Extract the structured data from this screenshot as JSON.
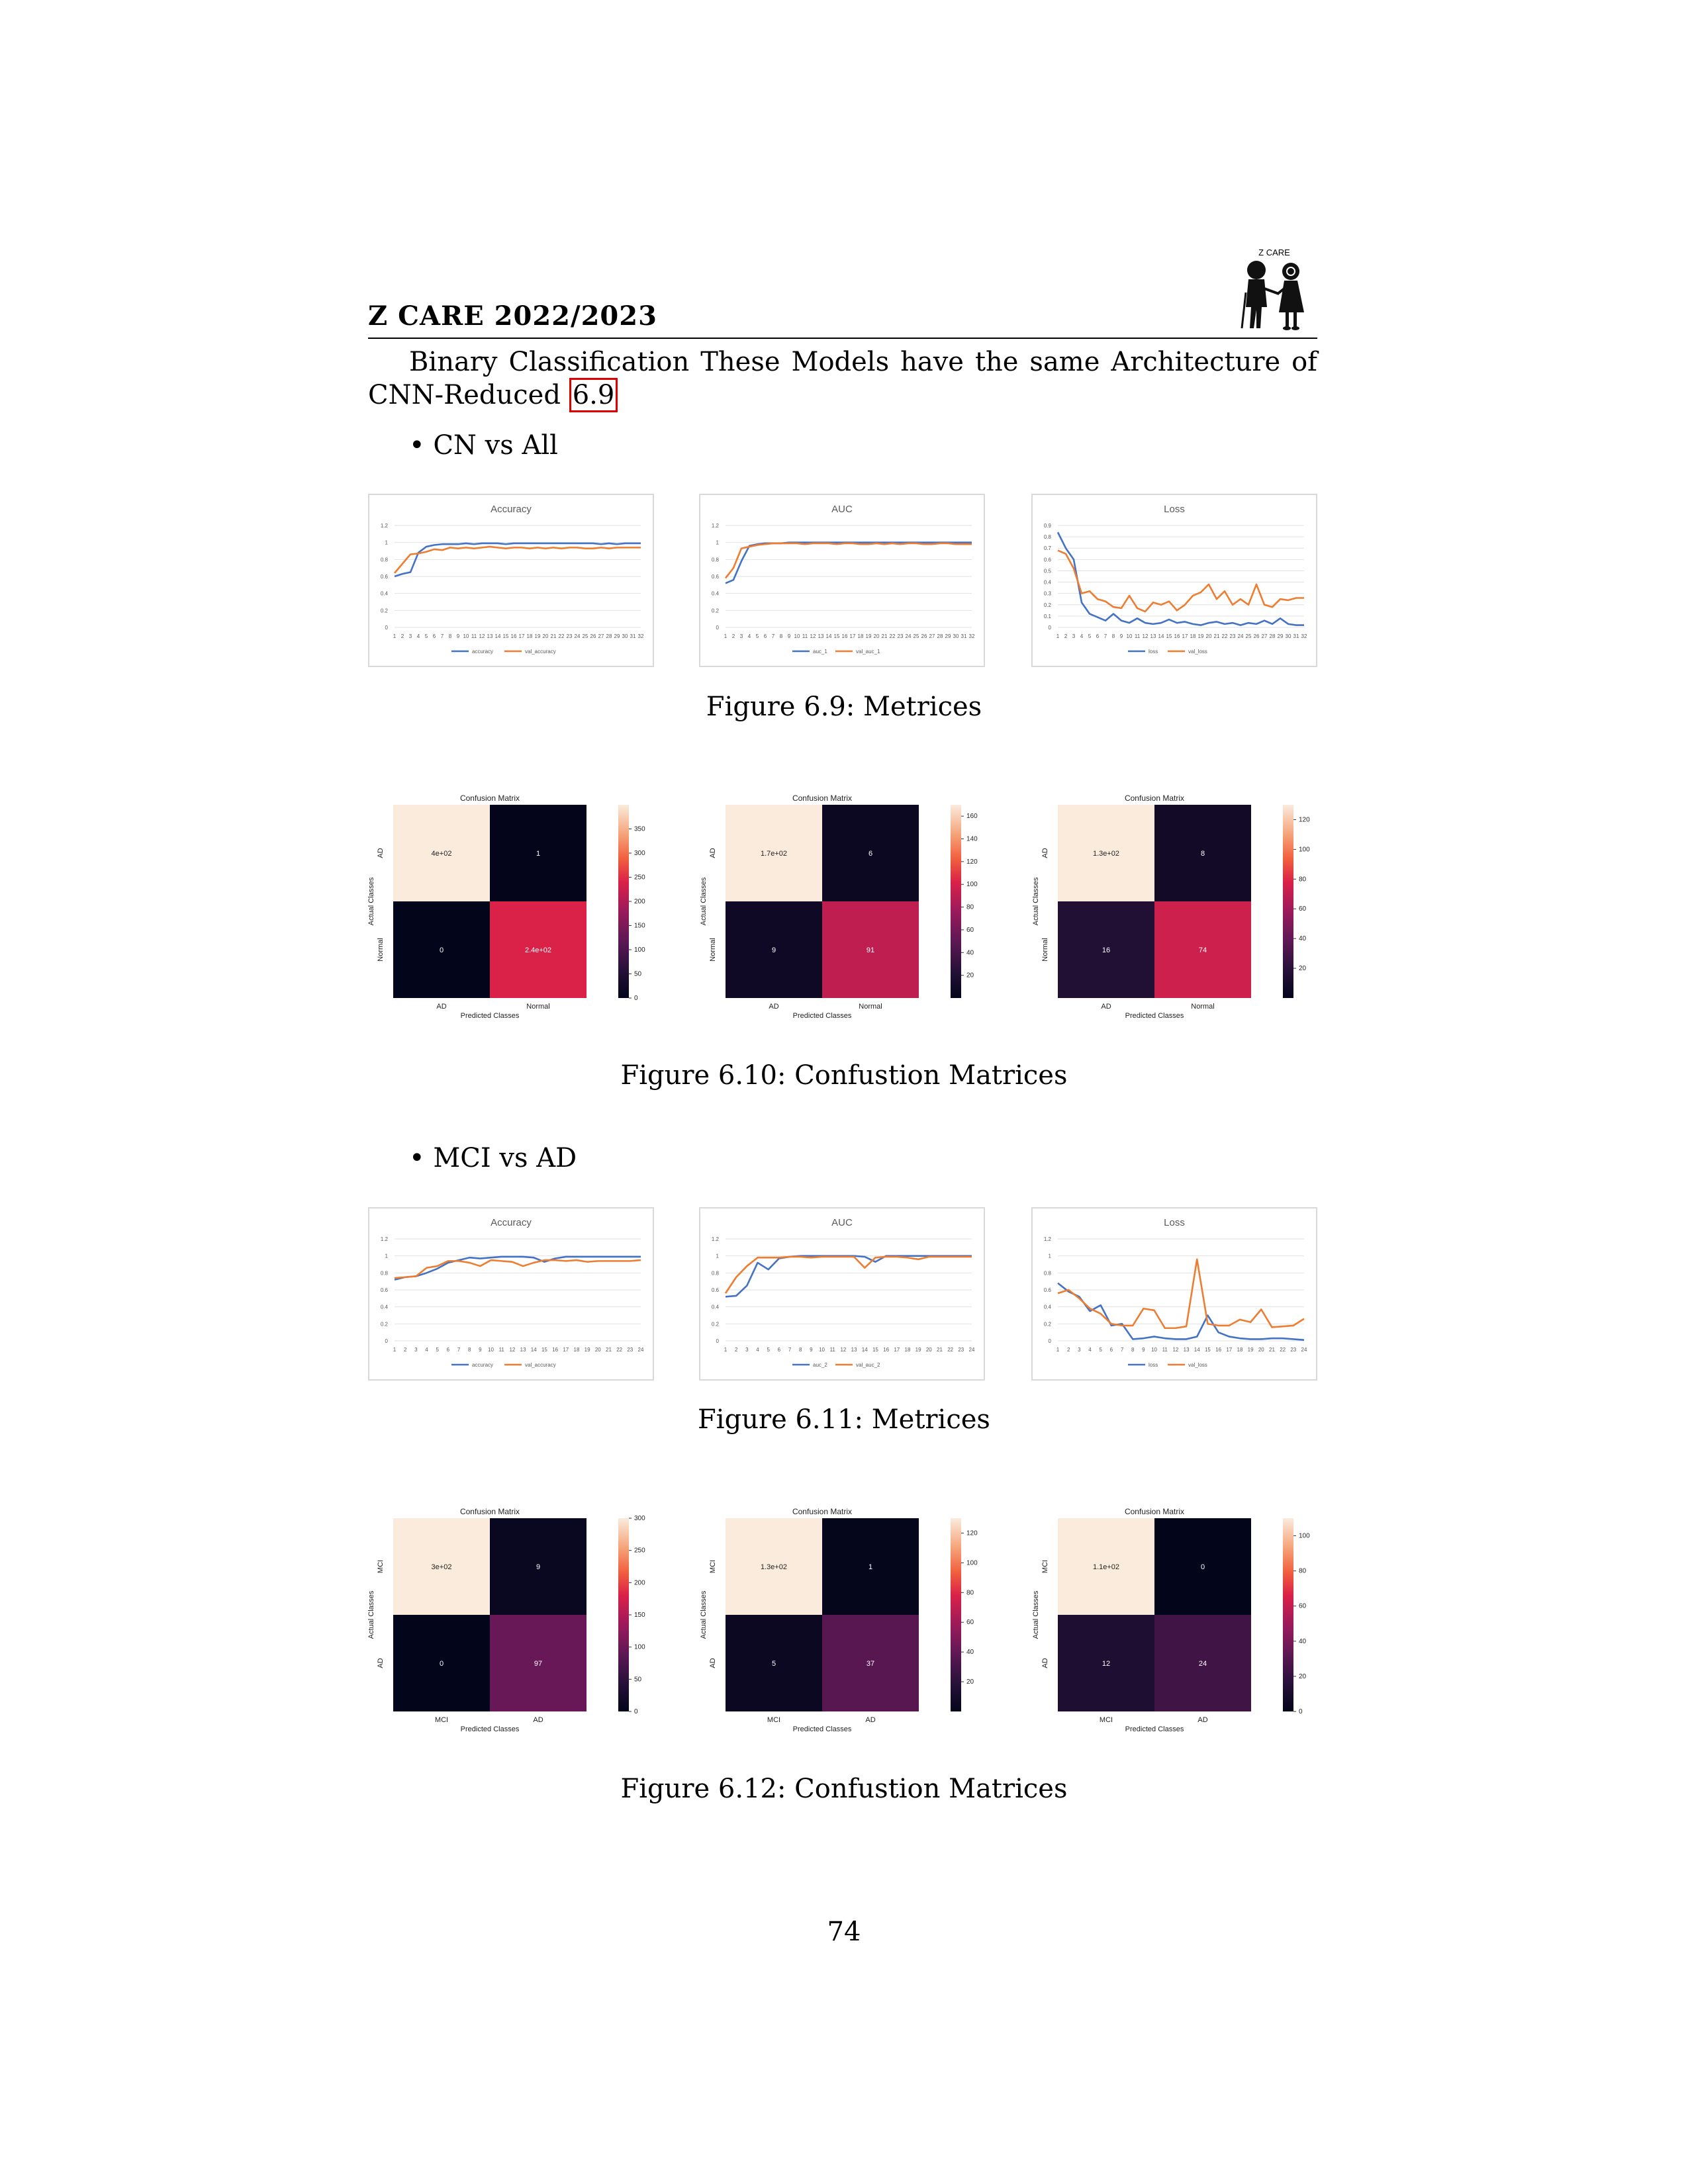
{
  "header": {
    "title": "Z CARE 2022/2023",
    "logo_text": "Z CARE"
  },
  "intro": {
    "text": "Binary Classification These Models have the same Architecture of CNN-Reduced",
    "ref": "6.9"
  },
  "sections": [
    {
      "bullet": "CN vs All",
      "metrics_caption": "Figure 6.9: Metrices",
      "cm_caption": "Figure 6.10: Confustion Matrices"
    },
    {
      "bullet": "MCI vs AD",
      "metrics_caption": "Figure 6.11: Metrices",
      "cm_caption": "Figure 6.12: Confustion Matrices"
    }
  ],
  "page_number": "74",
  "colors": {
    "train": "#4472c4",
    "val": "#ed7d31",
    "grid": "#e2e2e2"
  },
  "chart_data": [
    {
      "type": "line",
      "title": "Accuracy",
      "x": [
        1,
        2,
        3,
        4,
        5,
        6,
        7,
        8,
        9,
        10,
        11,
        12,
        13,
        14,
        15,
        16,
        17,
        18,
        19,
        20,
        21,
        22,
        23,
        24,
        25,
        26,
        27,
        28,
        29,
        30,
        31,
        32
      ],
      "ylim": [
        0,
        1.2
      ],
      "yticks": [
        "0",
        "0.2",
        "0.4",
        "0.6",
        "0.8",
        "1",
        "1.2"
      ],
      "ytickvals": [
        0,
        0.2,
        0.4,
        0.6,
        0.8,
        1,
        1.2
      ],
      "series": [
        {
          "name": "accuracy",
          "values": [
            0.6,
            0.63,
            0.65,
            0.88,
            0.95,
            0.97,
            0.98,
            0.98,
            0.98,
            0.99,
            0.98,
            0.99,
            0.99,
            0.99,
            0.98,
            0.99,
            0.99,
            0.99,
            0.99,
            0.99,
            0.99,
            0.99,
            0.99,
            0.99,
            0.99,
            0.99,
            0.98,
            0.99,
            0.98,
            0.99,
            0.99,
            0.99
          ]
        },
        {
          "name": "val_accuracy",
          "values": [
            0.64,
            0.75,
            0.86,
            0.87,
            0.89,
            0.92,
            0.91,
            0.94,
            0.93,
            0.94,
            0.93,
            0.94,
            0.95,
            0.94,
            0.93,
            0.94,
            0.94,
            0.93,
            0.94,
            0.93,
            0.94,
            0.93,
            0.94,
            0.94,
            0.93,
            0.93,
            0.94,
            0.93,
            0.94,
            0.94,
            0.94,
            0.94
          ]
        }
      ]
    },
    {
      "type": "line",
      "title": "AUC",
      "x": [
        1,
        2,
        3,
        4,
        5,
        6,
        7,
        8,
        9,
        10,
        11,
        12,
        13,
        14,
        15,
        16,
        17,
        18,
        19,
        20,
        21,
        22,
        23,
        24,
        25,
        26,
        27,
        28,
        29,
        30,
        31,
        32
      ],
      "ylim": [
        0,
        1.2
      ],
      "yticks": [
        "0",
        "0.2",
        "0.4",
        "0.6",
        "0.8",
        "1",
        "1.2"
      ],
      "ytickvals": [
        0,
        0.2,
        0.4,
        0.6,
        0.8,
        1,
        1.2
      ],
      "series": [
        {
          "name": "auc_1",
          "values": [
            0.52,
            0.56,
            0.78,
            0.96,
            0.98,
            0.99,
            0.99,
            0.99,
            1,
            1,
            1,
            1,
            1,
            1,
            1,
            1,
            1,
            1,
            1,
            1,
            1,
            1,
            1,
            1,
            1,
            1,
            1,
            1,
            1,
            1,
            1,
            1
          ]
        },
        {
          "name": "val_auc_1",
          "values": [
            0.58,
            0.7,
            0.93,
            0.95,
            0.97,
            0.98,
            0.99,
            0.99,
            0.99,
            0.99,
            0.98,
            0.99,
            0.99,
            0.99,
            0.98,
            0.99,
            0.99,
            0.98,
            0.98,
            0.99,
            0.98,
            0.99,
            0.98,
            0.99,
            0.99,
            0.98,
            0.98,
            0.99,
            0.99,
            0.98,
            0.98,
            0.98
          ]
        }
      ]
    },
    {
      "type": "line",
      "title": "Loss",
      "x": [
        1,
        2,
        3,
        4,
        5,
        6,
        7,
        8,
        9,
        10,
        11,
        12,
        13,
        14,
        15,
        16,
        17,
        18,
        19,
        20,
        21,
        22,
        23,
        24,
        25,
        26,
        27,
        28,
        29,
        30,
        31,
        32
      ],
      "ylim": [
        0,
        0.9
      ],
      "yticks": [
        "0",
        "0.1",
        "0.2",
        "0.3",
        "0.4",
        "0.5",
        "0.6",
        "0.7",
        "0.8",
        "0.9"
      ],
      "ytickvals": [
        0,
        0.1,
        0.2,
        0.3,
        0.4,
        0.5,
        0.6,
        0.7,
        0.8,
        0.9
      ],
      "series": [
        {
          "name": "loss",
          "values": [
            0.84,
            0.7,
            0.6,
            0.22,
            0.12,
            0.09,
            0.06,
            0.12,
            0.06,
            0.04,
            0.08,
            0.04,
            0.03,
            0.04,
            0.07,
            0.04,
            0.05,
            0.03,
            0.02,
            0.04,
            0.05,
            0.03,
            0.04,
            0.02,
            0.04,
            0.03,
            0.06,
            0.03,
            0.08,
            0.03,
            0.02,
            0.02
          ]
        },
        {
          "name": "val_loss",
          "values": [
            0.68,
            0.65,
            0.52,
            0.3,
            0.32,
            0.25,
            0.23,
            0.18,
            0.17,
            0.28,
            0.17,
            0.14,
            0.22,
            0.2,
            0.23,
            0.15,
            0.2,
            0.28,
            0.31,
            0.38,
            0.25,
            0.32,
            0.2,
            0.25,
            0.2,
            0.38,
            0.2,
            0.18,
            0.25,
            0.24,
            0.26,
            0.26
          ]
        }
      ]
    },
    {
      "type": "line",
      "title": "Accuracy",
      "x": [
        1,
        2,
        3,
        4,
        5,
        6,
        7,
        8,
        9,
        10,
        11,
        12,
        13,
        14,
        15,
        16,
        17,
        18,
        19,
        20,
        21,
        22,
        23,
        24
      ],
      "ylim": [
        0,
        1.2
      ],
      "yticks": [
        "0",
        "0.2",
        "0.4",
        "0.6",
        "0.8",
        "1",
        "1.2"
      ],
      "ytickvals": [
        0,
        0.2,
        0.4,
        0.6,
        0.8,
        1,
        1.2
      ],
      "series": [
        {
          "name": "accuracy",
          "values": [
            0.72,
            0.75,
            0.76,
            0.8,
            0.85,
            0.92,
            0.95,
            0.98,
            0.97,
            0.98,
            0.99,
            0.99,
            0.99,
            0.98,
            0.93,
            0.97,
            0.99,
            0.99,
            0.99,
            0.99,
            0.99,
            0.99,
            0.99,
            0.99
          ]
        },
        {
          "name": "val_accuracy",
          "values": [
            0.74,
            0.75,
            0.76,
            0.86,
            0.88,
            0.94,
            0.94,
            0.92,
            0.88,
            0.95,
            0.94,
            0.93,
            0.88,
            0.92,
            0.95,
            0.95,
            0.94,
            0.95,
            0.93,
            0.94,
            0.94,
            0.94,
            0.94,
            0.95
          ]
        }
      ]
    },
    {
      "type": "line",
      "title": "AUC",
      "x": [
        1,
        2,
        3,
        4,
        5,
        6,
        7,
        8,
        9,
        10,
        11,
        12,
        13,
        14,
        15,
        16,
        17,
        18,
        19,
        20,
        21,
        22,
        23,
        24
      ],
      "ylim": [
        0,
        1.2
      ],
      "yticks": [
        "0",
        "0.2",
        "0.4",
        "0.6",
        "0.8",
        "1",
        "1.2"
      ],
      "ytickvals": [
        0,
        0.2,
        0.4,
        0.6,
        0.8,
        1,
        1.2
      ],
      "series": [
        {
          "name": "auc_2",
          "values": [
            0.52,
            0.53,
            0.65,
            0.92,
            0.84,
            0.97,
            0.99,
            1,
            1,
            1,
            1,
            1,
            1,
            0.99,
            0.93,
            1,
            1,
            1,
            1,
            1,
            1,
            1,
            1,
            1
          ]
        },
        {
          "name": "val_auc_2",
          "values": [
            0.56,
            0.75,
            0.88,
            0.98,
            0.98,
            0.98,
            0.99,
            0.99,
            0.98,
            0.99,
            0.99,
            0.99,
            0.99,
            0.86,
            0.98,
            0.99,
            0.99,
            0.98,
            0.96,
            0.99,
            0.99,
            0.99,
            0.99,
            0.99
          ]
        }
      ]
    },
    {
      "type": "line",
      "title": "Loss",
      "x": [
        1,
        2,
        3,
        4,
        5,
        6,
        7,
        8,
        9,
        10,
        11,
        12,
        13,
        14,
        15,
        16,
        17,
        18,
        19,
        20,
        21,
        22,
        23,
        24
      ],
      "ylim": [
        0,
        1.2
      ],
      "yticks": [
        "0",
        "0.2",
        "0.4",
        "0.6",
        "0.8",
        "1",
        "1.2"
      ],
      "ytickvals": [
        0,
        0.2,
        0.4,
        0.6,
        0.8,
        1,
        1.2
      ],
      "series": [
        {
          "name": "loss",
          "values": [
            0.68,
            0.58,
            0.52,
            0.35,
            0.42,
            0.18,
            0.2,
            0.02,
            0.03,
            0.05,
            0.03,
            0.02,
            0.02,
            0.05,
            0.3,
            0.1,
            0.05,
            0.03,
            0.02,
            0.02,
            0.03,
            0.03,
            0.02,
            0.01
          ]
        },
        {
          "name": "val_loss",
          "values": [
            0.56,
            0.6,
            0.5,
            0.38,
            0.32,
            0.2,
            0.18,
            0.18,
            0.38,
            0.36,
            0.15,
            0.15,
            0.17,
            0.96,
            0.2,
            0.18,
            0.18,
            0.25,
            0.22,
            0.37,
            0.16,
            0.17,
            0.18,
            0.26
          ]
        }
      ]
    },
    {
      "type": "heatmap",
      "title": "Confusion Matrix",
      "xlabel": "Predicted Classes",
      "ylabel": "Actual Classes",
      "classes": [
        "AD",
        "Normal"
      ],
      "values": [
        [
          400,
          1
        ],
        [
          0,
          240
        ]
      ],
      "labels": [
        [
          "4e+02",
          "1"
        ],
        [
          "0",
          "2.4e+02"
        ]
      ],
      "vmax": 400,
      "cbar_ticks": [
        0,
        50,
        100,
        150,
        200,
        250,
        300,
        350
      ]
    },
    {
      "type": "heatmap",
      "title": "Confusion Matrix",
      "xlabel": "Predicted Classes",
      "ylabel": "Actual Classes",
      "classes": [
        "AD",
        "Normal"
      ],
      "values": [
        [
          170,
          6
        ],
        [
          9,
          91
        ]
      ],
      "labels": [
        [
          "1.7e+02",
          "6"
        ],
        [
          "9",
          "91"
        ]
      ],
      "vmax": 170,
      "cbar_ticks": [
        20,
        40,
        60,
        80,
        100,
        120,
        140,
        160
      ]
    },
    {
      "type": "heatmap",
      "title": "Confusion Matrix",
      "xlabel": "Predicted Classes",
      "ylabel": "Actual Classes",
      "classes": [
        "AD",
        "Normal"
      ],
      "values": [
        [
          130,
          8
        ],
        [
          16,
          74
        ]
      ],
      "labels": [
        [
          "1.3e+02",
          "8"
        ],
        [
          "16",
          "74"
        ]
      ],
      "vmax": 130,
      "cbar_ticks": [
        20,
        40,
        60,
        80,
        100,
        120
      ]
    },
    {
      "type": "heatmap",
      "title": "Confusion Matrix",
      "xlabel": "Predicted Classes",
      "ylabel": "Actual Classes",
      "classes": [
        "MCI",
        "AD"
      ],
      "values": [
        [
          300,
          9
        ],
        [
          0,
          97
        ]
      ],
      "labels": [
        [
          "3e+02",
          "9"
        ],
        [
          "0",
          "97"
        ]
      ],
      "vmax": 300,
      "cbar_ticks": [
        0,
        50,
        100,
        150,
        200,
        250,
        300
      ]
    },
    {
      "type": "heatmap",
      "title": "Confusion Matrix",
      "xlabel": "Predicted Classes",
      "ylabel": "Actual Classes",
      "classes": [
        "MCI",
        "AD"
      ],
      "values": [
        [
          130,
          1
        ],
        [
          5,
          37
        ]
      ],
      "labels": [
        [
          "1.3e+02",
          "1"
        ],
        [
          "5",
          "37"
        ]
      ],
      "vmax": 130,
      "cbar_ticks": [
        20,
        40,
        60,
        80,
        100,
        120
      ]
    },
    {
      "type": "heatmap",
      "title": "Confusion Matrix",
      "xlabel": "Predicted Classes",
      "ylabel": "Actual Classes",
      "classes": [
        "MCI",
        "AD"
      ],
      "values": [
        [
          110,
          0
        ],
        [
          12,
          24
        ]
      ],
      "labels": [
        [
          "1.1e+02",
          "0"
        ],
        [
          "12",
          "24"
        ]
      ],
      "vmax": 110,
      "cbar_ticks": [
        0,
        20,
        40,
        60,
        80,
        100
      ]
    }
  ]
}
